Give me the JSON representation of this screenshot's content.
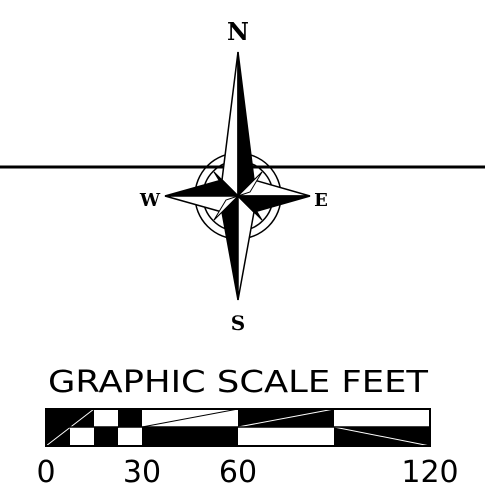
{
  "compass": {
    "north": "N",
    "south": "S",
    "east": "E",
    "west": "W"
  },
  "scale": {
    "title": "GRAPHIC SCALE FEET",
    "ticks": [
      "0",
      "30",
      "60",
      "120"
    ]
  },
  "colors": {
    "ink": "#000000",
    "paper": "#ffffff"
  }
}
